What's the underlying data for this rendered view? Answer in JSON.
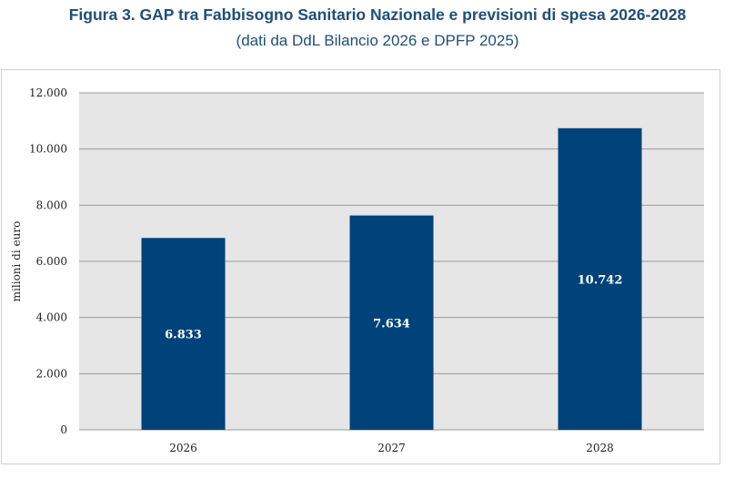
{
  "figure": {
    "title": "Figura 3. GAP tra Fabbisogno Sanitario Nazionale e previsioni di spesa 2026-2028",
    "subtitle": "(dati da DdL Bilancio 2026 e DPFP 2025)"
  },
  "chart_data": {
    "type": "bar",
    "title": "Figura 3. GAP tra Fabbisogno Sanitario Nazionale e previsioni di spesa 2026-2028",
    "subtitle": "(dati da DdL Bilancio 2026 e DPFP 2025)",
    "categories": [
      "2026",
      "2027",
      "2028"
    ],
    "values": [
      6833,
      7634,
      10742
    ],
    "data_labels": [
      "6.833",
      "7.634",
      "10.742"
    ],
    "xlabel": "",
    "ylabel": "milioni di euro",
    "ylim": [
      0,
      12000
    ],
    "yticks": [
      0,
      2000,
      4000,
      6000,
      8000,
      10000,
      12000
    ],
    "ytick_labels": [
      "0",
      "2.000",
      "4.000",
      "6.000",
      "8.000",
      "10.000",
      "12.000"
    ],
    "grid": true,
    "legend": "none",
    "colors": {
      "bar": "#00427a",
      "plot_background": "#e6e6e6",
      "grid": "#9a9a9a",
      "title": "#1f4e79",
      "label": "#ffffff",
      "axis_text": "#222222"
    }
  }
}
